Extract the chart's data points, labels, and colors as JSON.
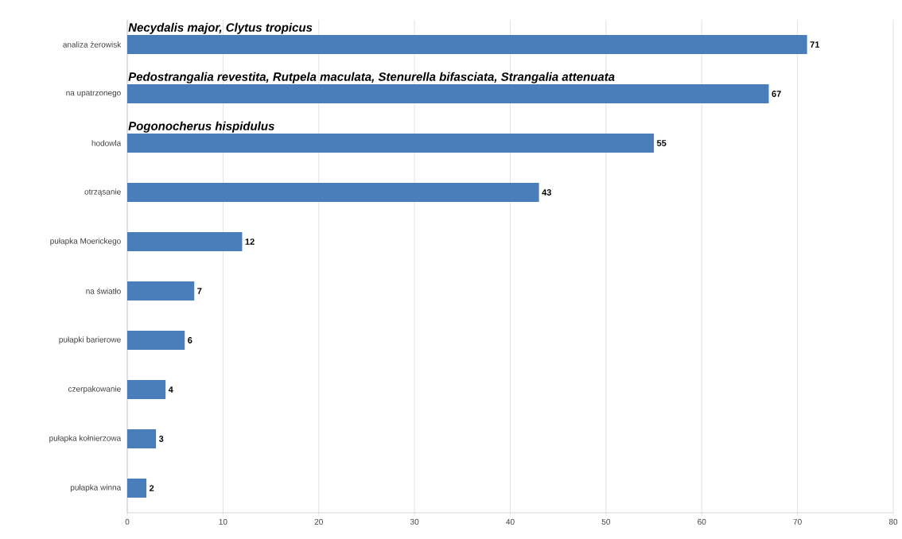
{
  "chart_data": {
    "type": "bar",
    "orientation": "horizontal",
    "categories": [
      "analiza żerowisk",
      "na upatrzonego",
      "hodowla",
      "otrząsanie",
      "pułapka Moerickego",
      "na światło",
      "pułapki barierowe",
      "czerpakowanie",
      "pułapka kołnierzowa",
      "pułapka winna"
    ],
    "values": [
      71,
      67,
      55,
      43,
      12,
      7,
      6,
      4,
      3,
      2
    ],
    "color": "#4a7ebb",
    "xlim": [
      0,
      80
    ],
    "xticks": [
      0,
      10,
      20,
      30,
      40,
      50,
      60,
      70,
      80
    ],
    "grid": "x",
    "data_labels": true,
    "annotations": [
      "*Necydalis major, Clytus tropicus*",
      "*Pedostrangalia revestita, Rutpela maculata, Stenurella bifasciata, Strangalia attenuata*",
      "*Pogonocherus hispidulus*"
    ]
  }
}
